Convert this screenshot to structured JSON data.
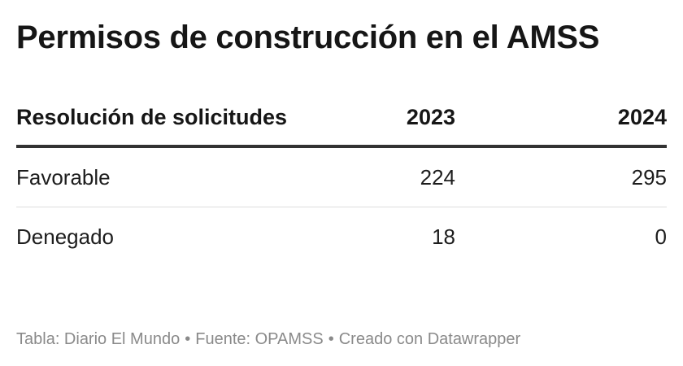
{
  "chart_data": {
    "type": "table",
    "title": "Permisos de construcción en el AMSS",
    "columns": [
      "Resolución de solicitudes",
      "2023",
      "2024"
    ],
    "rows": [
      {
        "label": "Favorable",
        "values": [
          224,
          295
        ]
      },
      {
        "label": "Denegado",
        "values": [
          18,
          0
        ]
      }
    ]
  },
  "footer": {
    "table": "Tabla: Diario El Mundo",
    "source": "Fuente: OPAMSS",
    "credit": "Creado con Datawrapper",
    "separator": "•"
  },
  "colors": {
    "text": "#1d1d1d",
    "header_rule": "#333333",
    "row_rule": "#dddddd",
    "footer_text": "#8a8a8a"
  }
}
